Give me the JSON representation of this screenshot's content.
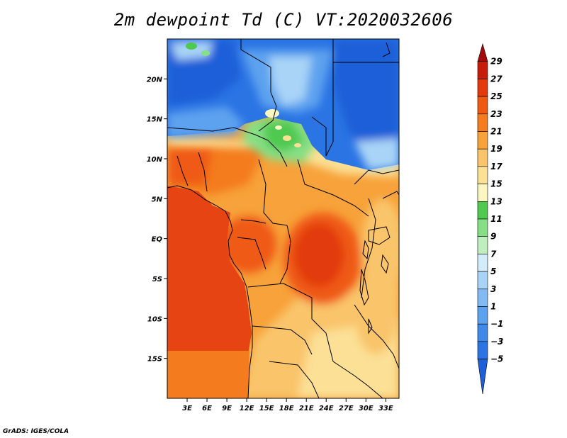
{
  "title": "2m dewpoint Td (C) VT:2020032606",
  "credit": "GrADS: IGES/COLA",
  "map": {
    "lon_range": [
      0,
      35
    ],
    "lat_range": [
      -20,
      25
    ],
    "x_ticks": [
      {
        "value": 3,
        "label": "3E"
      },
      {
        "value": 6,
        "label": "6E"
      },
      {
        "value": 9,
        "label": "9E"
      },
      {
        "value": 12,
        "label": "12E"
      },
      {
        "value": 15,
        "label": "15E"
      },
      {
        "value": 18,
        "label": "18E"
      },
      {
        "value": 21,
        "label": "21E"
      },
      {
        "value": 24,
        "label": "24E"
      },
      {
        "value": 27,
        "label": "27E"
      },
      {
        "value": 30,
        "label": "30E"
      },
      {
        "value": 33,
        "label": "33E"
      }
    ],
    "y_ticks": [
      {
        "value": 20,
        "label": "20N"
      },
      {
        "value": 15,
        "label": "15N"
      },
      {
        "value": 10,
        "label": "10N"
      },
      {
        "value": 5,
        "label": "5N"
      },
      {
        "value": 0,
        "label": "EQ"
      },
      {
        "value": -5,
        "label": "5S"
      },
      {
        "value": -10,
        "label": "10S"
      },
      {
        "value": -15,
        "label": "15S"
      }
    ]
  },
  "colorbar": {
    "levels": [
      -5,
      -3,
      -1,
      1,
      3,
      5,
      7,
      9,
      11,
      13,
      15,
      17,
      19,
      21,
      23,
      25,
      27,
      29
    ],
    "labels": [
      "29",
      "27",
      "25",
      "23",
      "21",
      "19",
      "17",
      "15",
      "13",
      "11",
      "9",
      "7",
      "5",
      "3",
      "1",
      "−1",
      "−3",
      "−5"
    ],
    "colors": [
      "#1c5fd8",
      "#2a74e4",
      "#3f8ae9",
      "#5da2ef",
      "#82bbf3",
      "#a9d4f7",
      "#d2ecfa",
      "#bfeebf",
      "#86df86",
      "#4fc94f",
      "#f9f6c2",
      "#fbe095",
      "#f9c46a",
      "#f7a23a",
      "#f47c1f",
      "#ef5a13",
      "#e23a0d",
      "#c71b0b",
      "#a50a0a"
    ]
  }
}
